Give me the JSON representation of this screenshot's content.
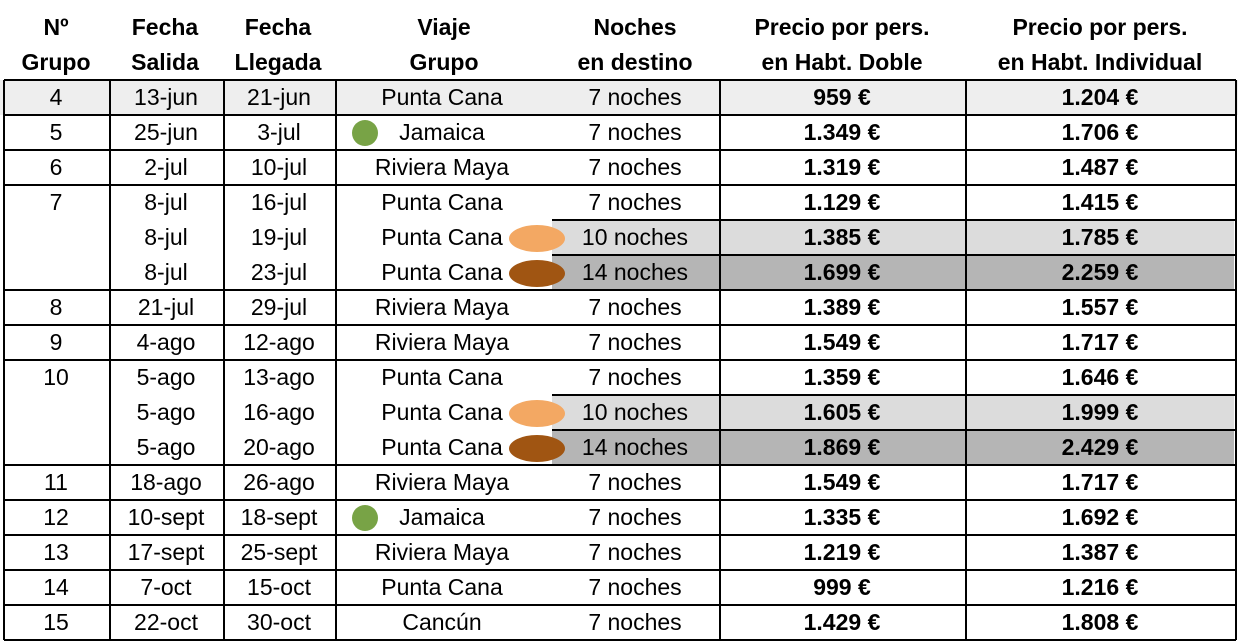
{
  "headers": {
    "grupo": [
      "Nº",
      "Grupo"
    ],
    "salida": [
      "Fecha",
      "Salida"
    ],
    "llegada": [
      "Fecha",
      "Llegada"
    ],
    "viaje": [
      "Viaje",
      "Grupo"
    ],
    "noches": [
      "Noches",
      "en destino"
    ],
    "doble": [
      "Precio por pers.",
      "en Habt. Doble"
    ],
    "individual": [
      "Precio por pers.",
      "en Habt. Individual"
    ]
  },
  "rows": [
    {
      "grupo": "4",
      "salida": "13-jun",
      "llegada": "21-jun",
      "viaje": "Punta Cana",
      "noches": "7 noches",
      "doble": "959 €",
      "individual": "1.204 €"
    },
    {
      "grupo": "5",
      "salida": "25-jun",
      "llegada": "3-jul",
      "viaje": "Jamaica",
      "noches": "7 noches",
      "doble": "1.349 €",
      "individual": "1.706 €",
      "marker": "green"
    },
    {
      "grupo": "6",
      "salida": "2-jul",
      "llegada": "10-jul",
      "viaje": "Riviera Maya",
      "noches": "7 noches",
      "doble": "1.319 €",
      "individual": "1.487 €"
    },
    {
      "grupo": "7",
      "salida": "8-jul",
      "llegada": "16-jul",
      "viaje": "Punta Cana",
      "noches": "7 noches",
      "doble": "1.129 €",
      "individual": "1.415 €"
    },
    {
      "grupo": "",
      "salida": "8-jul",
      "llegada": "19-jul",
      "viaje": "Punta Cana",
      "noches": "10 noches",
      "doble": "1.385 €",
      "individual": "1.785 €",
      "marker": "light-orange",
      "shade": "light"
    },
    {
      "grupo": "",
      "salida": "8-jul",
      "llegada": "23-jul",
      "viaje": "Punta Cana",
      "noches": "14 noches",
      "doble": "1.699 €",
      "individual": "2.259 €",
      "marker": "brown",
      "shade": "dark"
    },
    {
      "grupo": "8",
      "salida": "21-jul",
      "llegada": "29-jul",
      "viaje": "Riviera Maya",
      "noches": "7 noches",
      "doble": "1.389 €",
      "individual": "1.557 €"
    },
    {
      "grupo": "9",
      "salida": "4-ago",
      "llegada": "12-ago",
      "viaje": "Riviera Maya",
      "noches": "7 noches",
      "doble": "1.549 €",
      "individual": "1.717 €"
    },
    {
      "grupo": "10",
      "salida": "5-ago",
      "llegada": "13-ago",
      "viaje": "Punta Cana",
      "noches": "7 noches",
      "doble": "1.359 €",
      "individual": "1.646 €"
    },
    {
      "grupo": "",
      "salida": "5-ago",
      "llegada": "16-ago",
      "viaje": "Punta Cana",
      "noches": "10 noches",
      "doble": "1.605 €",
      "individual": "1.999 €",
      "marker": "light-orange",
      "shade": "light"
    },
    {
      "grupo": "",
      "salida": "5-ago",
      "llegada": "20-ago",
      "viaje": "Punta Cana",
      "noches": "14 noches",
      "doble": "1.869 €",
      "individual": "2.429 €",
      "marker": "brown",
      "shade": "dark"
    },
    {
      "grupo": "11",
      "salida": "18-ago",
      "llegada": "26-ago",
      "viaje": "Riviera Maya",
      "noches": "7 noches",
      "doble": "1.549 €",
      "individual": "1.717 €"
    },
    {
      "grupo": "12",
      "salida": "10-sept",
      "llegada": "18-sept",
      "viaje": "Jamaica",
      "noches": "7 noches",
      "doble": "1.335 €",
      "individual": "1.692 €",
      "marker": "green"
    },
    {
      "grupo": "13",
      "salida": "17-sept",
      "llegada": "25-sept",
      "viaje": "Riviera Maya",
      "noches": "7 noches",
      "doble": "1.219 €",
      "individual": "1.387 €"
    },
    {
      "grupo": "14",
      "salida": "7-oct",
      "llegada": "15-oct",
      "viaje": "Punta Cana",
      "noches": "7 noches",
      "doble": "999 €",
      "individual": "1.216 €"
    },
    {
      "grupo": "15",
      "salida": "22-oct",
      "llegada": "30-oct",
      "viaje": "Cancún",
      "noches": "7 noches",
      "doble": "1.429 €",
      "individual": "1.808 €"
    }
  ],
  "colors": {
    "green_marker": "#78a346",
    "light_orange_marker": "#f3a863",
    "brown_marker": "#a05512",
    "shade_light": "#dcdcdc",
    "shade_dark": "#b5b5b5",
    "first_row_bg": "#eeeeee"
  }
}
